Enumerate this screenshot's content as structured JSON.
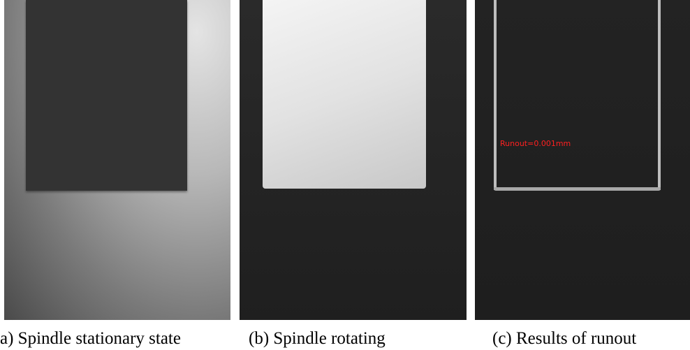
{
  "figure": {
    "panels": [
      {
        "caption": "a) Spindle stationary state"
      },
      {
        "caption": "(b) Spindle rotating"
      },
      {
        "caption": "(c) Results of runout",
        "annotation": "Runout=0.001mm"
      }
    ]
  }
}
